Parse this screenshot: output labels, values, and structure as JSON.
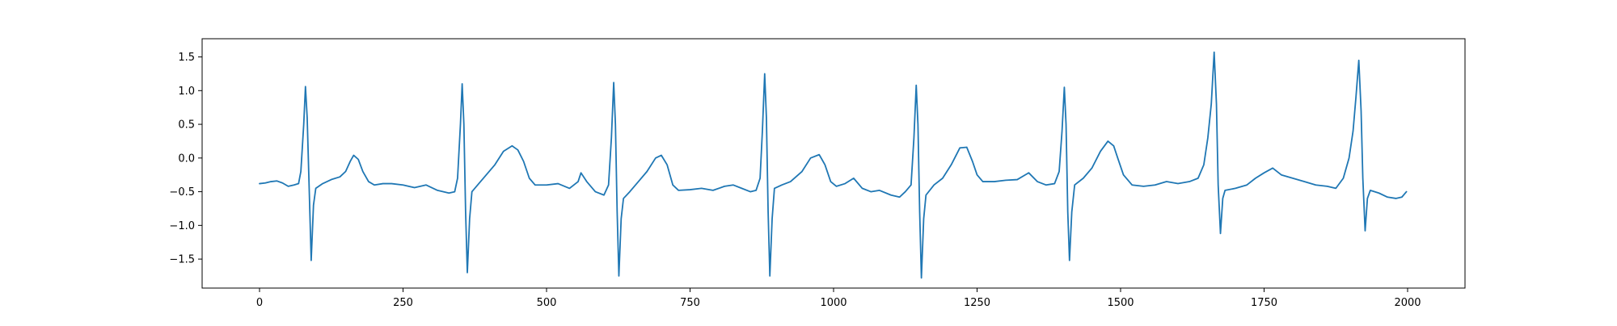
{
  "chart_data": {
    "type": "line",
    "title": "",
    "xlabel": "",
    "ylabel": "",
    "xlim": [
      -100,
      2100
    ],
    "ylim": [
      -1.93,
      1.77
    ],
    "xticks": [
      0,
      250,
      500,
      750,
      1000,
      1250,
      1500,
      1750,
      2000
    ],
    "yticks": [
      -1.5,
      -1.0,
      -0.5,
      0.0,
      0.5,
      1.0,
      1.5
    ],
    "xtick_labels": [
      "0",
      "250",
      "500",
      "750",
      "1000",
      "1250",
      "1500",
      "1750",
      "2000"
    ],
    "ytick_labels": [
      "−1.5",
      "−1.0",
      "−0.5",
      "0.0",
      "0.5",
      "1.0",
      "1.5"
    ],
    "grid": false,
    "series": [
      {
        "color": "#1f77b4",
        "points": [
          [
            0,
            -0.38
          ],
          [
            10,
            -0.37
          ],
          [
            20,
            -0.35
          ],
          [
            30,
            -0.34
          ],
          [
            40,
            -0.37
          ],
          [
            50,
            -0.42
          ],
          [
            60,
            -0.4
          ],
          [
            68,
            -0.38
          ],
          [
            72,
            -0.2
          ],
          [
            77,
            0.5
          ],
          [
            80,
            1.06
          ],
          [
            83,
            0.6
          ],
          [
            87,
            -0.6
          ],
          [
            90,
            -1.52
          ],
          [
            94,
            -0.7
          ],
          [
            98,
            -0.45
          ],
          [
            110,
            -0.38
          ],
          [
            125,
            -0.32
          ],
          [
            140,
            -0.28
          ],
          [
            150,
            -0.2
          ],
          [
            158,
            -0.05
          ],
          [
            164,
            0.04
          ],
          [
            172,
            -0.02
          ],
          [
            180,
            -0.2
          ],
          [
            190,
            -0.35
          ],
          [
            200,
            -0.4
          ],
          [
            215,
            -0.38
          ],
          [
            230,
            -0.38
          ],
          [
            250,
            -0.4
          ],
          [
            270,
            -0.44
          ],
          [
            290,
            -0.4
          ],
          [
            310,
            -0.48
          ],
          [
            330,
            -0.52
          ],
          [
            340,
            -0.5
          ],
          [
            345,
            -0.3
          ],
          [
            350,
            0.5
          ],
          [
            353,
            1.1
          ],
          [
            356,
            0.5
          ],
          [
            359,
            -0.8
          ],
          [
            362,
            -1.7
          ],
          [
            366,
            -0.9
          ],
          [
            370,
            -0.5
          ],
          [
            380,
            -0.4
          ],
          [
            395,
            -0.25
          ],
          [
            410,
            -0.1
          ],
          [
            425,
            0.1
          ],
          [
            440,
            0.18
          ],
          [
            450,
            0.12
          ],
          [
            460,
            -0.05
          ],
          [
            470,
            -0.3
          ],
          [
            480,
            -0.4
          ],
          [
            500,
            -0.4
          ],
          [
            520,
            -0.38
          ],
          [
            540,
            -0.45
          ],
          [
            555,
            -0.35
          ],
          [
            560,
            -0.22
          ],
          [
            570,
            -0.35
          ],
          [
            585,
            -0.5
          ],
          [
            600,
            -0.55
          ],
          [
            608,
            -0.4
          ],
          [
            613,
            0.3
          ],
          [
            617,
            1.12
          ],
          [
            620,
            0.5
          ],
          [
            623,
            -0.8
          ],
          [
            626,
            -1.75
          ],
          [
            630,
            -0.9
          ],
          [
            634,
            -0.6
          ],
          [
            645,
            -0.5
          ],
          [
            660,
            -0.35
          ],
          [
            675,
            -0.2
          ],
          [
            690,
            0.0
          ],
          [
            700,
            0.04
          ],
          [
            710,
            -0.1
          ],
          [
            720,
            -0.4
          ],
          [
            730,
            -0.48
          ],
          [
            750,
            -0.47
          ],
          [
            770,
            -0.45
          ],
          [
            790,
            -0.48
          ],
          [
            810,
            -0.42
          ],
          [
            825,
            -0.4
          ],
          [
            840,
            -0.45
          ],
          [
            855,
            -0.5
          ],
          [
            865,
            -0.48
          ],
          [
            872,
            -0.3
          ],
          [
            876,
            0.4
          ],
          [
            880,
            1.25
          ],
          [
            883,
            0.6
          ],
          [
            886,
            -0.8
          ],
          [
            889,
            -1.75
          ],
          [
            893,
            -0.9
          ],
          [
            897,
            -0.45
          ],
          [
            910,
            -0.4
          ],
          [
            925,
            -0.35
          ],
          [
            945,
            -0.2
          ],
          [
            960,
            0.0
          ],
          [
            975,
            0.05
          ],
          [
            985,
            -0.1
          ],
          [
            995,
            -0.35
          ],
          [
            1005,
            -0.42
          ],
          [
            1020,
            -0.38
          ],
          [
            1035,
            -0.3
          ],
          [
            1050,
            -0.45
          ],
          [
            1065,
            -0.5
          ],
          [
            1080,
            -0.48
          ],
          [
            1100,
            -0.55
          ],
          [
            1115,
            -0.58
          ],
          [
            1125,
            -0.5
          ],
          [
            1135,
            -0.4
          ],
          [
            1140,
            0.3
          ],
          [
            1144,
            1.08
          ],
          [
            1147,
            0.5
          ],
          [
            1150,
            -0.8
          ],
          [
            1153,
            -1.78
          ],
          [
            1157,
            -0.9
          ],
          [
            1161,
            -0.55
          ],
          [
            1175,
            -0.4
          ],
          [
            1190,
            -0.3
          ],
          [
            1205,
            -0.1
          ],
          [
            1220,
            0.15
          ],
          [
            1232,
            0.16
          ],
          [
            1242,
            -0.05
          ],
          [
            1250,
            -0.25
          ],
          [
            1260,
            -0.35
          ],
          [
            1280,
            -0.35
          ],
          [
            1300,
            -0.33
          ],
          [
            1320,
            -0.32
          ],
          [
            1340,
            -0.22
          ],
          [
            1355,
            -0.35
          ],
          [
            1370,
            -0.4
          ],
          [
            1385,
            -0.38
          ],
          [
            1393,
            -0.2
          ],
          [
            1398,
            0.4
          ],
          [
            1402,
            1.05
          ],
          [
            1405,
            0.5
          ],
          [
            1408,
            -0.8
          ],
          [
            1411,
            -1.52
          ],
          [
            1415,
            -0.8
          ],
          [
            1420,
            -0.4
          ],
          [
            1435,
            -0.3
          ],
          [
            1450,
            -0.15
          ],
          [
            1465,
            0.1
          ],
          [
            1478,
            0.25
          ],
          [
            1488,
            0.18
          ],
          [
            1495,
            0.0
          ],
          [
            1505,
            -0.25
          ],
          [
            1520,
            -0.4
          ],
          [
            1540,
            -0.42
          ],
          [
            1560,
            -0.4
          ],
          [
            1580,
            -0.35
          ],
          [
            1600,
            -0.38
          ],
          [
            1620,
            -0.35
          ],
          [
            1635,
            -0.3
          ],
          [
            1645,
            -0.1
          ],
          [
            1652,
            0.3
          ],
          [
            1658,
            0.8
          ],
          [
            1663,
            1.57
          ],
          [
            1667,
            0.8
          ],
          [
            1670,
            -0.4
          ],
          [
            1674,
            -1.12
          ],
          [
            1678,
            -0.6
          ],
          [
            1682,
            -0.48
          ],
          [
            1700,
            -0.45
          ],
          [
            1720,
            -0.4
          ],
          [
            1735,
            -0.3
          ],
          [
            1750,
            -0.22
          ],
          [
            1765,
            -0.15
          ],
          [
            1780,
            -0.25
          ],
          [
            1800,
            -0.3
          ],
          [
            1820,
            -0.35
          ],
          [
            1840,
            -0.4
          ],
          [
            1860,
            -0.42
          ],
          [
            1875,
            -0.45
          ],
          [
            1888,
            -0.3
          ],
          [
            1898,
            0.0
          ],
          [
            1905,
            0.4
          ],
          [
            1910,
            0.9
          ],
          [
            1915,
            1.45
          ],
          [
            1919,
            0.7
          ],
          [
            1922,
            -0.3
          ],
          [
            1926,
            -1.08
          ],
          [
            1930,
            -0.6
          ],
          [
            1935,
            -0.48
          ],
          [
            1950,
            -0.52
          ],
          [
            1965,
            -0.58
          ],
          [
            1980,
            -0.6
          ],
          [
            1990,
            -0.58
          ],
          [
            1998,
            -0.5
          ]
        ]
      }
    ]
  }
}
